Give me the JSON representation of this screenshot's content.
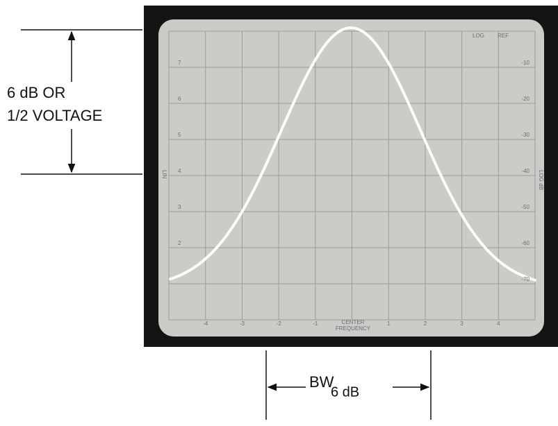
{
  "left_annotation": {
    "line1": "6 dB OR",
    "line2": "1/2 VOLTAGE"
  },
  "bandwidth_annotation": {
    "label": "BW",
    "subscript": "6 dB"
  },
  "screen": {
    "header": [
      "LOG",
      "REF"
    ],
    "lin_scale": [
      "7",
      "6",
      "5",
      "4",
      "3",
      "2"
    ],
    "lin_label": "LIN",
    "log_scale": [
      "-10",
      "-20",
      "-30",
      "-40",
      "-50",
      "-60",
      "-70"
    ],
    "log_label": "LOG dB",
    "freq_ticks_left": [
      "-4",
      "-3",
      "-2",
      "-1"
    ],
    "center_label": [
      "CENTER",
      "FREQUENCY"
    ],
    "freq_ticks_right": [
      "1",
      "2",
      "3",
      "4"
    ]
  }
}
